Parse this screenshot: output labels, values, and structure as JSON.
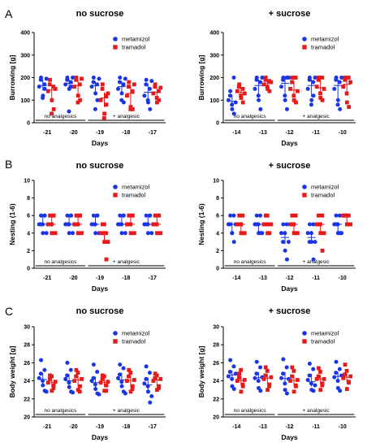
{
  "legend": {
    "metamizol": {
      "label": "metamizol",
      "color": "#1a35e6",
      "marker": "circle"
    },
    "tramadol": {
      "label": "tramadol",
      "color": "#e61a1a",
      "marker": "square"
    }
  },
  "chart_data": [
    {
      "panel": "A",
      "type": "scatter",
      "title": "no sucrose",
      "ylabel": "Burrowing [g]",
      "xlabel": "Days",
      "ylim": [
        0,
        400
      ],
      "yticks": [
        0,
        100,
        200,
        300,
        400
      ],
      "categories": [
        "-21",
        "-20",
        "-19",
        "-18",
        "-17"
      ],
      "periods": [
        {
          "label": "no analgesics",
          "from": 0,
          "to": 1
        },
        {
          "label": "+ analgesic",
          "from": 2,
          "to": 4
        }
      ],
      "series": [
        {
          "name": "metamizol",
          "points": [
            [
              160,
              200,
              120,
              150,
              190,
              110,
              170,
              195
            ],
            [
              170,
              200,
              150,
              160,
              190,
              50,
              180,
              200
            ],
            [
              160,
              200,
              130,
              100,
              180,
              60,
              170,
              195
            ],
            [
              150,
              200,
              130,
              90,
              180,
              100,
              170,
              195
            ],
            [
              120,
              190,
              90,
              60,
              170,
              100,
              150,
              185
            ]
          ]
        },
        {
          "name": "tramadol",
          "points": [
            [
              140,
              190,
              100,
              60,
              170,
              40,
              160,
              150
            ],
            [
              160,
              200,
              120,
              100,
              190,
              90,
              170,
              195
            ],
            [
              100,
              170,
              40,
              80,
              150,
              20,
              120,
              130
            ],
            [
              120,
              180,
              70,
              60,
              160,
              60,
              140,
              170
            ],
            [
              130,
              170,
              90,
              100,
              160,
              110,
              140,
              155
            ]
          ]
        }
      ]
    },
    {
      "panel": "A",
      "type": "scatter",
      "title": "+ sucrose",
      "ylabel": "Burrowing [g]",
      "xlabel": "Days",
      "ylim": [
        0,
        400
      ],
      "yticks": [
        0,
        100,
        200,
        300,
        400
      ],
      "categories": [
        "-14",
        "-13",
        "-12",
        "-11",
        "-10"
      ],
      "periods": [
        {
          "label": "no analgesics",
          "from": 0,
          "to": 1
        },
        {
          "label": "+ analgesic",
          "from": 2,
          "to": 4
        }
      ],
      "series": [
        {
          "name": "metamizol",
          "points": [
            [
              100,
              140,
              60,
              40,
              120,
              80,
              200,
              90
            ],
            [
              150,
              200,
              100,
              60,
              190,
              120,
              180,
              200
            ],
            [
              160,
              200,
              100,
              60,
              190,
              120,
              200,
              200
            ],
            [
              150,
              200,
              100,
              120,
              190,
              80,
              180,
              200
            ],
            [
              150,
              200,
              100,
              60,
              190,
              80,
              180,
              200
            ]
          ]
        },
        {
          "name": "tramadol",
          "points": [
            [
              140,
              170,
              110,
              90,
              160,
              120,
              150,
              130
            ],
            [
              170,
              200,
              150,
              140,
              190,
              160,
              185,
              180
            ],
            [
              150,
              200,
              100,
              90,
              180,
              120,
              200,
              140
            ],
            [
              160,
              200,
              110,
              100,
              190,
              130,
              200,
              150
            ],
            [
              160,
              200,
              90,
              70,
              190,
              130,
              200,
              180
            ]
          ]
        }
      ]
    },
    {
      "panel": "B",
      "type": "scatter",
      "title": "no sucrose",
      "ylabel": "Nesting (1-6)",
      "xlabel": "Days",
      "ylim": [
        0,
        10
      ],
      "yticks": [
        0,
        2,
        4,
        6,
        8,
        10
      ],
      "categories": [
        "-21",
        "-20",
        "-19",
        "-18",
        "-17"
      ],
      "periods": [
        {
          "label": "no analgesics",
          "from": 0,
          "to": 1
        },
        {
          "label": "+ analgesic",
          "from": 2,
          "to": 4
        }
      ],
      "series": [
        {
          "name": "metamizol",
          "points": [
            [
              5,
              6,
              4,
              6,
              5,
              5,
              6,
              4
            ],
            [
              5,
              6,
              4,
              6,
              5,
              5,
              6,
              4
            ],
            [
              5,
              6,
              4,
              6,
              5,
              5,
              6,
              4
            ],
            [
              5,
              6,
              4,
              6,
              5,
              5,
              6,
              4
            ],
            [
              5,
              6,
              4,
              6,
              5,
              5,
              6,
              4
            ]
          ]
        },
        {
          "name": "tramadol",
          "points": [
            [
              5,
              6,
              4,
              6,
              5,
              5,
              6,
              4
            ],
            [
              5,
              6,
              4,
              6,
              5,
              5,
              6,
              4
            ],
            [
              4,
              5,
              3,
              1,
              4,
              5,
              4,
              3
            ],
            [
              5,
              6,
              4,
              6,
              5,
              5,
              6,
              4
            ],
            [
              5,
              6,
              4,
              6,
              5,
              5,
              6,
              4
            ]
          ]
        }
      ]
    },
    {
      "panel": "B",
      "type": "scatter",
      "title": "+ sucrose",
      "ylabel": "Nesting (1-6)",
      "xlabel": "Days",
      "ylim": [
        0,
        10
      ],
      "yticks": [
        0,
        2,
        4,
        6,
        8,
        10
      ],
      "categories": [
        "-14",
        "-13",
        "-12",
        "-11",
        "-10"
      ],
      "periods": [
        {
          "label": "no analgesics",
          "from": 0,
          "to": 1
        },
        {
          "label": "+ analgesic",
          "from": 2,
          "to": 4
        }
      ],
      "series": [
        {
          "name": "metamizol",
          "points": [
            [
              5,
              6,
              4,
              3,
              5,
              4,
              6,
              5
            ],
            [
              5,
              6,
              4,
              4,
              5,
              5,
              6,
              4
            ],
            [
              4,
              5,
              2,
              1,
              3,
              4,
              5,
              3
            ],
            [
              4,
              5,
              3,
              1,
              3,
              4,
              5,
              3
            ],
            [
              5,
              6,
              4,
              4,
              5,
              5,
              6,
              4
            ]
          ]
        },
        {
          "name": "tramadol",
          "points": [
            [
              5,
              6,
              4,
              4,
              5,
              5,
              6,
              4
            ],
            [
              5,
              6,
              4,
              4,
              5,
              6,
              5,
              5
            ],
            [
              5,
              6,
              4,
              4,
              5,
              5,
              6,
              4
            ],
            [
              5,
              6,
              4,
              2,
              5,
              5,
              6,
              4
            ],
            [
              6,
              6,
              5,
              5,
              6,
              6,
              6,
              5
            ]
          ]
        }
      ]
    },
    {
      "panel": "C",
      "type": "scatter",
      "title": "no sucrose",
      "ylabel": "Body weight [g]",
      "xlabel": "Days",
      "ylim": [
        20,
        30
      ],
      "yticks": [
        20,
        22,
        24,
        26,
        28,
        30
      ],
      "categories": [
        "-21",
        "-20",
        "-19",
        "-18",
        "-17"
      ],
      "periods": [
        {
          "label": "no analgesics",
          "from": 0,
          "to": 1
        },
        {
          "label": "+ analgesic",
          "from": 2,
          "to": 4
        }
      ],
      "series": [
        {
          "name": "metamizol",
          "points": [
            [
              24.3,
              26.3,
              23.5,
              22.9,
              24.8,
              24,
              25.2,
              22.8
            ],
            [
              24.2,
              26,
              23.3,
              22.8,
              24.6,
              23.8,
              25.2,
              22.7
            ],
            [
              24,
              25.8,
              23.1,
              22.6,
              24.3,
              23.6,
              25,
              22.5
            ],
            [
              24.3,
              25.8,
              23.4,
              22.8,
              24.7,
              23.9,
              25.4,
              22.6
            ],
            [
              23.7,
              25.6,
              22.8,
              21.6,
              24.2,
              23.4,
              24.9,
              22.3
            ]
          ]
        },
        {
          "name": "tramadol",
          "points": [
            [
              23.8,
              24.6,
              22.9,
              23.5,
              24.2,
              24.5,
              23.2,
              23.9
            ],
            [
              24,
              25.2,
              23,
              23.4,
              24.5,
              24.9,
              22.8,
              24.2
            ],
            [
              23.8,
              24.6,
              22.9,
              23.5,
              24.2,
              24.5,
              22.9,
              23.9
            ],
            [
              24,
              25.2,
              22.8,
              23.4,
              24.5,
              24.9,
              23.1,
              24.1
            ],
            [
              24,
              24.8,
              23,
              23.4,
              24.3,
              24.6,
              23.2,
              24.2
            ]
          ]
        }
      ]
    },
    {
      "panel": "C",
      "type": "scatter",
      "title": "+ sucrose",
      "ylabel": "Body weight [g]",
      "xlabel": "Days",
      "ylim": [
        20,
        30
      ],
      "yticks": [
        20,
        22,
        24,
        26,
        28,
        30
      ],
      "categories": [
        "-14",
        "-13",
        "-12",
        "-11",
        "-10"
      ],
      "periods": [
        {
          "label": "no analgesics",
          "from": 0,
          "to": 1
        },
        {
          "label": "+ analgesic",
          "from": 2,
          "to": 4
        }
      ],
      "series": [
        {
          "name": "metamizol",
          "points": [
            [
              24.5,
              26.3,
              23.4,
              23.1,
              25,
              24.2,
              25.6,
              24.8
            ],
            [
              24.3,
              26.1,
              23.2,
              22.9,
              24.8,
              24,
              25.5,
              24.4
            ],
            [
              24.3,
              26.4,
              23,
              22.6,
              24.8,
              23.7,
              25.5,
              24.2
            ],
            [
              24.1,
              25.9,
              23,
              22.9,
              24.6,
              23.7,
              25.3,
              23.5
            ],
            [
              24.4,
              26.1,
              23.2,
              22.9,
              24.9,
              24,
              25.3,
              24.6
            ]
          ]
        },
        {
          "name": "tramadol",
          "points": [
            [
              24,
              24.8,
              22.8,
              23.4,
              24.4,
              25.2,
              23.6,
              24.1
            ],
            [
              24.2,
              25.5,
              23,
              23.6,
              24.6,
              25.1,
              23.4,
              24.4
            ],
            [
              24,
              25.5,
              22.8,
              23.4,
              24.5,
              25.1,
              23.5,
              24.1
            ],
            [
              24.2,
              25.4,
              23,
              23.7,
              24.5,
              25,
              23.5,
              24.2
            ],
            [
              24.3,
              25.8,
              23.1,
              23.8,
              24.7,
              25.1,
              23.9,
              24.5
            ]
          ]
        }
      ]
    }
  ]
}
